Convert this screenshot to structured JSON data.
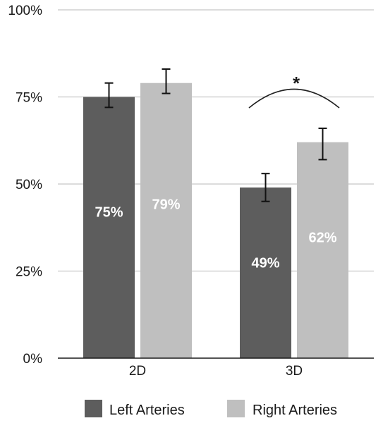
{
  "chart_data": {
    "type": "bar",
    "categories": [
      "2D",
      "3D"
    ],
    "series": [
      {
        "name": "Left Arteries",
        "color": "#5d5d5d",
        "values": [
          75,
          49
        ],
        "error_low": [
          72,
          45
        ],
        "error_high": [
          79,
          53
        ],
        "labels": [
          "75%",
          "49%"
        ]
      },
      {
        "name": "Right Arteries",
        "color": "#bfbfbf",
        "values": [
          79,
          62
        ],
        "error_low": [
          76,
          57
        ],
        "error_high": [
          83,
          66
        ],
        "labels": [
          "79%",
          "62%"
        ]
      }
    ],
    "ylim": [
      0,
      100
    ],
    "yticks": [
      0,
      25,
      50,
      75,
      100
    ],
    "ytick_labels": [
      "0%",
      "25%",
      "50%",
      "75%",
      "100%"
    ],
    "grid": true,
    "legend_position": "bottom",
    "annotation": {
      "text": "*",
      "category": "3D"
    }
  }
}
